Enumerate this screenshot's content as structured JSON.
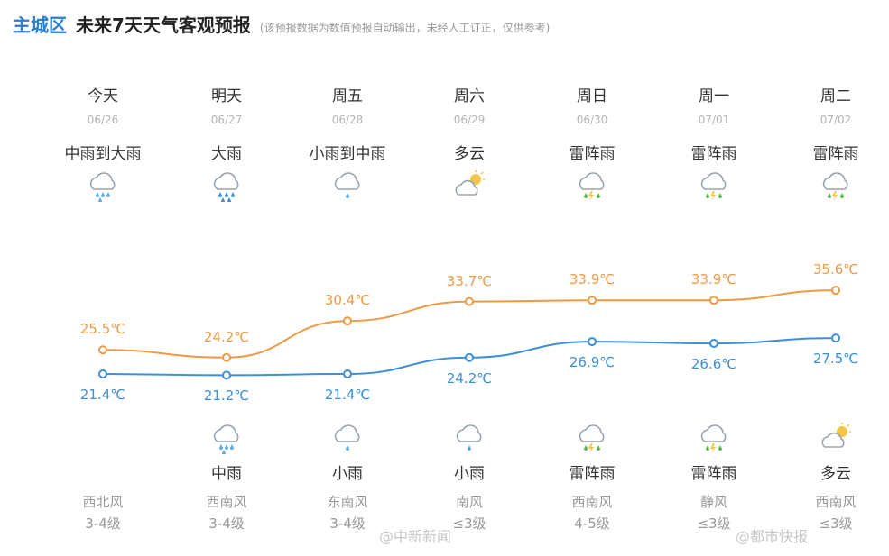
{
  "header": {
    "district": "主城区",
    "title": "未来7天天气客观预报",
    "note": "(该预报数据为数值预报自动输出，未经人工订正，仅供参考)"
  },
  "days": [
    {
      "name": "今天",
      "date": "06/26",
      "day_weather": "中雨到大雨",
      "day_icon": "rain-moderate-icon",
      "high": "25.5℃",
      "low": "21.4℃",
      "night_weather": "",
      "night_icon": "",
      "wind_dir": "西北风",
      "wind_level": "3-4级"
    },
    {
      "name": "明天",
      "date": "06/27",
      "day_weather": "大雨",
      "day_icon": "rain-heavy-icon",
      "high": "24.2℃",
      "low": "21.2℃",
      "night_weather": "中雨",
      "night_icon": "rain-moderate-icon",
      "wind_dir": "西南风",
      "wind_level": "3-4级"
    },
    {
      "name": "周五",
      "date": "06/28",
      "day_weather": "小雨到中雨",
      "day_icon": "rain-light-icon",
      "high": "30.4℃",
      "low": "21.4℃",
      "night_weather": "小雨",
      "night_icon": "rain-light-icon",
      "wind_dir": "东南风",
      "wind_level": "3-4级"
    },
    {
      "name": "周六",
      "date": "06/29",
      "day_weather": "多云",
      "day_icon": "cloudy-icon",
      "high": "33.7℃",
      "low": "24.2℃",
      "night_weather": "小雨",
      "night_icon": "rain-light-icon",
      "wind_dir": "南风",
      "wind_level": "≤3级"
    },
    {
      "name": "周日",
      "date": "06/30",
      "day_weather": "雷阵雨",
      "day_icon": "thunderstorm-icon",
      "high": "33.9℃",
      "low": "26.9℃",
      "night_weather": "雷阵雨",
      "night_icon": "thunderstorm-icon",
      "wind_dir": "西南风",
      "wind_level": "4-5级"
    },
    {
      "name": "周一",
      "date": "07/01",
      "day_weather": "雷阵雨",
      "day_icon": "thunderstorm-icon",
      "high": "33.9℃",
      "low": "26.6℃",
      "night_weather": "雷阵雨",
      "night_icon": "thunderstorm-icon",
      "wind_dir": "静风",
      "wind_level": "≤3级"
    },
    {
      "name": "周二",
      "date": "07/02",
      "day_weather": "雷阵雨",
      "day_icon": "thunderstorm-icon",
      "high": "35.6℃",
      "low": "27.5℃",
      "night_weather": "多云",
      "night_icon": "cloudy-icon",
      "wind_dir": "西南风",
      "wind_level": "≤3级"
    }
  ],
  "chart_data": {
    "type": "line",
    "categories": [
      "06/26",
      "06/27",
      "06/28",
      "06/29",
      "06/30",
      "07/01",
      "07/02"
    ],
    "series": [
      {
        "values": [
          25.5,
          24.2,
          30.4,
          33.7,
          33.9,
          33.9,
          35.6
        ],
        "color": "#ee9a45"
      },
      {
        "values": [
          21.4,
          21.2,
          21.4,
          24.2,
          26.9,
          26.6,
          27.5
        ],
        "color": "#3d8fd6"
      }
    ],
    "unit": "℃"
  },
  "watermarks": [
    "@中新新闻",
    "@都市快报"
  ],
  "colors": {
    "accent": "#2a7fd0",
    "high": "#ee9a45",
    "low": "#3d8fd6",
    "muted": "#999999"
  }
}
